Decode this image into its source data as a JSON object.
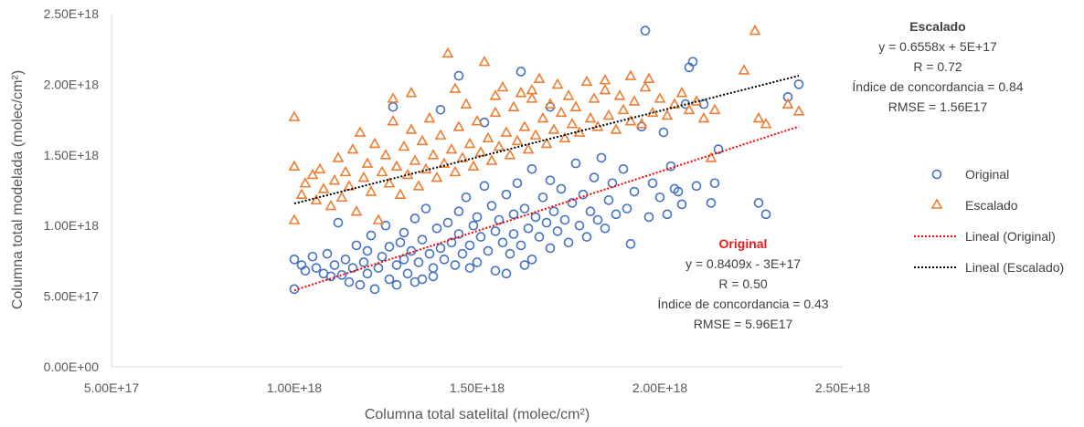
{
  "chart_data": {
    "type": "scatter",
    "xlabel": "Columna total satelital (molec/cm²)",
    "ylabel": "Columna total modelada (molec/cm²)",
    "xlim": [
      5e+17,
      2.5e+18
    ],
    "ylim": [
      0,
      2.5e+18
    ],
    "x_ticks": [
      "5.00E+17",
      "1.00E+18",
      "1.50E+18",
      "2.00E+18",
      "2.50E+18"
    ],
    "y_ticks": [
      "0.00E+00",
      "5.00E+17",
      "1.00E+18",
      "1.50E+18",
      "2.00E+18",
      "2.50E+18"
    ],
    "grid": false,
    "legend_position": "right",
    "series": [
      {
        "name": "Original",
        "marker": "circle",
        "color": "#4472c4",
        "points": [
          [
            1e+18,
            5.5e+17
          ],
          [
            1e+18,
            7.6e+17
          ],
          [
            1.02e+18,
            7.2e+17
          ],
          [
            1.03e+18,
            6.8e+17
          ],
          [
            1.05e+18,
            7.8e+17
          ],
          [
            1.06e+18,
            7e+17
          ],
          [
            1.08e+18,
            6.6e+17
          ],
          [
            1.09e+18,
            8e+17
          ],
          [
            1.1e+18,
            6.4e+17
          ],
          [
            1.11e+18,
            7.2e+17
          ],
          [
            1.12e+18,
            1.02e+18
          ],
          [
            1.13e+18,
            6.5e+17
          ],
          [
            1.14e+18,
            7.6e+17
          ],
          [
            1.15e+18,
            6e+17
          ],
          [
            1.16e+18,
            7e+17
          ],
          [
            1.17e+18,
            8.6e+17
          ],
          [
            1.18e+18,
            5.8e+17
          ],
          [
            1.19e+18,
            7.4e+17
          ],
          [
            1.2e+18,
            8.2e+17
          ],
          [
            1.2e+18,
            6.6e+17
          ],
          [
            1.21e+18,
            9.3e+17
          ],
          [
            1.22e+18,
            5.5e+17
          ],
          [
            1.23e+18,
            7e+17
          ],
          [
            1.24e+18,
            7.8e+17
          ],
          [
            1.25e+18,
            1e+18
          ],
          [
            1.26e+18,
            6.2e+17
          ],
          [
            1.26e+18,
            8.5e+17
          ],
          [
            1.27e+18,
            1.84e+18
          ],
          [
            1.28e+18,
            7.2e+17
          ],
          [
            1.29e+18,
            8.8e+17
          ],
          [
            1.3e+18,
            7.6e+17
          ],
          [
            1.3e+18,
            9.5e+17
          ],
          [
            1.31e+18,
            6.6e+17
          ],
          [
            1.32e+18,
            8.2e+17
          ],
          [
            1.33e+18,
            1.05e+18
          ],
          [
            1.34e+18,
            7.4e+17
          ],
          [
            1.35e+18,
            9e+17
          ],
          [
            1.35e+18,
            6.2e+17
          ],
          [
            1.36e+18,
            1.12e+18
          ],
          [
            1.37e+18,
            8e+17
          ],
          [
            1.38e+18,
            7e+17
          ],
          [
            1.39e+18,
            9.8e+17
          ],
          [
            1.4e+18,
            8.4e+17
          ],
          [
            1.4e+18,
            1.82e+18
          ],
          [
            1.41e+18,
            7.6e+17
          ],
          [
            1.42e+18,
            1.02e+18
          ],
          [
            1.43e+18,
            8.8e+17
          ],
          [
            1.44e+18,
            7.2e+17
          ],
          [
            1.45e+18,
            1.1e+18
          ],
          [
            1.45e+18,
            9.4e+17
          ],
          [
            1.46e+18,
            8e+17
          ],
          [
            1.47e+18,
            1.2e+18
          ],
          [
            1.48e+18,
            8.6e+17
          ],
          [
            1.49e+18,
            1e+18
          ],
          [
            1.5e+18,
            7.4e+17
          ],
          [
            1.5e+18,
            1.06e+18
          ],
          [
            1.51e+18,
            9.2e+17
          ],
          [
            1.52e+18,
            1.28e+18
          ],
          [
            1.53e+18,
            8.2e+17
          ],
          [
            1.54e+18,
            1.14e+18
          ],
          [
            1.55e+18,
            9.6e+17
          ],
          [
            1.55e+18,
            6.8e+17
          ],
          [
            1.56e+18,
            1.04e+18
          ],
          [
            1.57e+18,
            8.8e+17
          ],
          [
            1.58e+18,
            1.22e+18
          ],
          [
            1.59e+18,
            8e+17
          ],
          [
            1.6e+18,
            1.08e+18
          ],
          [
            1.6e+18,
            9.4e+17
          ],
          [
            1.61e+18,
            1.3e+18
          ],
          [
            1.62e+18,
            8.6e+17
          ],
          [
            1.63e+18,
            1.12e+18
          ],
          [
            1.64e+18,
            9.8e+17
          ],
          [
            1.65e+18,
            1.4e+18
          ],
          [
            1.65e+18,
            7.6e+17
          ],
          [
            1.66e+18,
            1.06e+18
          ],
          [
            1.67e+18,
            9.2e+17
          ],
          [
            1.68e+18,
            1.2e+18
          ],
          [
            1.69e+18,
            1.02e+18
          ],
          [
            1.7e+18,
            8.4e+17
          ],
          [
            1.7e+18,
            1.32e+18
          ],
          [
            1.71e+18,
            1.1e+18
          ],
          [
            1.72e+18,
            9.6e+17
          ],
          [
            1.73e+18,
            1.26e+18
          ],
          [
            1.74e+18,
            1.04e+18
          ],
          [
            1.75e+18,
            8.8e+17
          ],
          [
            1.76e+18,
            1.16e+18
          ],
          [
            1.77e+18,
            1.44e+18
          ],
          [
            1.78e+18,
            1e+18
          ],
          [
            1.79e+18,
            1.22e+18
          ],
          [
            1.8e+18,
            9.2e+17
          ],
          [
            1.81e+18,
            1.1e+18
          ],
          [
            1.82e+18,
            1.34e+18
          ],
          [
            1.83e+18,
            1.04e+18
          ],
          [
            1.84e+18,
            1.48e+18
          ],
          [
            1.85e+18,
            9.8e+17
          ],
          [
            1.86e+18,
            1.18e+18
          ],
          [
            1.87e+18,
            1.3e+18
          ],
          [
            1.88e+18,
            1.08e+18
          ],
          [
            1.9e+18,
            1.4e+18
          ],
          [
            1.91e+18,
            1.12e+18
          ],
          [
            1.92e+18,
            8.7e+17
          ],
          [
            1.93e+18,
            1.24e+18
          ],
          [
            1.95e+18,
            1.7e+18
          ],
          [
            1.96e+18,
            2.38e+18
          ],
          [
            1.97e+18,
            1.06e+18
          ],
          [
            1.98e+18,
            1.3e+18
          ],
          [
            2e+18,
            1.2e+18
          ],
          [
            2.01e+18,
            1.66e+18
          ],
          [
            2.02e+18,
            1.08e+18
          ],
          [
            2.03e+18,
            1.42e+18
          ],
          [
            2.04e+18,
            1.26e+18
          ],
          [
            2.05e+18,
            1.24e+18
          ],
          [
            2.06e+18,
            1.15e+18
          ],
          [
            2.07e+18,
            1.86e+18
          ],
          [
            2.08e+18,
            2.12e+18
          ],
          [
            2.09e+18,
            2.16e+18
          ],
          [
            2.1e+18,
            1.28e+18
          ],
          [
            2.12e+18,
            1.86e+18
          ],
          [
            2.14e+18,
            1.16e+18
          ],
          [
            2.15e+18,
            1.3e+18
          ],
          [
            2.16e+18,
            1.54e+18
          ],
          [
            2.27e+18,
            1.16e+18
          ],
          [
            2.29e+18,
            1.08e+18
          ],
          [
            2.35e+18,
            1.91e+18
          ],
          [
            2.38e+18,
            2e+18
          ],
          [
            1.45e+18,
            2.06e+18
          ],
          [
            1.52e+18,
            1.73e+18
          ],
          [
            1.62e+18,
            2.09e+18
          ],
          [
            1.7e+18,
            1.84e+18
          ],
          [
            1.58e+18,
            6.6e+17
          ],
          [
            1.33e+18,
            6e+17
          ],
          [
            1.38e+18,
            6.4e+17
          ],
          [
            1.48e+18,
            7e+17
          ],
          [
            1.63e+18,
            7.2e+17
          ],
          [
            1.28e+18,
            5.8e+17
          ]
        ]
      },
      {
        "name": "Escalado",
        "marker": "triangle",
        "color": "#ed7d31",
        "points": [
          [
            1e+18,
            1.04e+18
          ],
          [
            1e+18,
            1.42e+18
          ],
          [
            1e+18,
            1.77e+18
          ],
          [
            1.02e+18,
            1.22e+18
          ],
          [
            1.03e+18,
            1.3e+18
          ],
          [
            1.05e+18,
            1.36e+18
          ],
          [
            1.06e+18,
            1.18e+18
          ],
          [
            1.07e+18,
            1.4e+18
          ],
          [
            1.08e+18,
            1.26e+18
          ],
          [
            1.1e+18,
            1.14e+18
          ],
          [
            1.11e+18,
            1.32e+18
          ],
          [
            1.12e+18,
            1.48e+18
          ],
          [
            1.13e+18,
            1.2e+18
          ],
          [
            1.14e+18,
            1.38e+18
          ],
          [
            1.15e+18,
            1.28e+18
          ],
          [
            1.16e+18,
            1.54e+18
          ],
          [
            1.17e+18,
            1.1e+18
          ],
          [
            1.18e+18,
            1.66e+18
          ],
          [
            1.19e+18,
            1.34e+18
          ],
          [
            1.2e+18,
            1.44e+18
          ],
          [
            1.21e+18,
            1.24e+18
          ],
          [
            1.22e+18,
            1.58e+18
          ],
          [
            1.23e+18,
            1.04e+18
          ],
          [
            1.24e+18,
            1.38e+18
          ],
          [
            1.25e+18,
            1.5e+18
          ],
          [
            1.26e+18,
            1.3e+18
          ],
          [
            1.27e+18,
            1.74e+18
          ],
          [
            1.28e+18,
            1.42e+18
          ],
          [
            1.29e+18,
            1.22e+18
          ],
          [
            1.3e+18,
            1.56e+18
          ],
          [
            1.31e+18,
            1.36e+18
          ],
          [
            1.32e+18,
            1.68e+18
          ],
          [
            1.33e+18,
            1.46e+18
          ],
          [
            1.34e+18,
            1.28e+18
          ],
          [
            1.35e+18,
            1.6e+18
          ],
          [
            1.36e+18,
            1.4e+18
          ],
          [
            1.37e+18,
            1.76e+18
          ],
          [
            1.38e+18,
            1.5e+18
          ],
          [
            1.39e+18,
            1.34e+18
          ],
          [
            1.4e+18,
            1.64e+18
          ],
          [
            1.41e+18,
            1.44e+18
          ],
          [
            1.42e+18,
            2.22e+18
          ],
          [
            1.43e+18,
            1.54e+18
          ],
          [
            1.44e+18,
            1.38e+18
          ],
          [
            1.45e+18,
            1.7e+18
          ],
          [
            1.46e+18,
            1.48e+18
          ],
          [
            1.47e+18,
            1.86e+18
          ],
          [
            1.48e+18,
            1.58e+18
          ],
          [
            1.49e+18,
            1.42e+18
          ],
          [
            1.5e+18,
            1.74e+18
          ],
          [
            1.51e+18,
            1.52e+18
          ],
          [
            1.52e+18,
            2.16e+18
          ],
          [
            1.53e+18,
            1.62e+18
          ],
          [
            1.54e+18,
            1.46e+18
          ],
          [
            1.55e+18,
            1.8e+18
          ],
          [
            1.56e+18,
            1.56e+18
          ],
          [
            1.57e+18,
            1.98e+18
          ],
          [
            1.58e+18,
            1.66e+18
          ],
          [
            1.59e+18,
            1.5e+18
          ],
          [
            1.6e+18,
            1.84e+18
          ],
          [
            1.61e+18,
            1.6e+18
          ],
          [
            1.62e+18,
            1.94e+18
          ],
          [
            1.63e+18,
            1.7e+18
          ],
          [
            1.64e+18,
            1.54e+18
          ],
          [
            1.65e+18,
            1.9e+18
          ],
          [
            1.66e+18,
            1.64e+18
          ],
          [
            1.67e+18,
            2.04e+18
          ],
          [
            1.68e+18,
            1.76e+18
          ],
          [
            1.69e+18,
            1.58e+18
          ],
          [
            1.7e+18,
            1.86e+18
          ],
          [
            1.71e+18,
            1.68e+18
          ],
          [
            1.72e+18,
            2e+18
          ],
          [
            1.73e+18,
            1.8e+18
          ],
          [
            1.74e+18,
            1.62e+18
          ],
          [
            1.75e+18,
            1.92e+18
          ],
          [
            1.76e+18,
            1.72e+18
          ],
          [
            1.77e+18,
            1.84e+18
          ],
          [
            1.78e+18,
            1.66e+18
          ],
          [
            1.8e+18,
            2.02e+18
          ],
          [
            1.81e+18,
            1.76e+18
          ],
          [
            1.82e+18,
            1.9e+18
          ],
          [
            1.83e+18,
            1.7e+18
          ],
          [
            1.85e+18,
            1.96e+18
          ],
          [
            1.86e+18,
            1.78e+18
          ],
          [
            1.88e+18,
            1.68e+18
          ],
          [
            1.89e+18,
            1.92e+18
          ],
          [
            1.9e+18,
            1.82e+18
          ],
          [
            1.92e+18,
            1.74e+18
          ],
          [
            1.93e+18,
            1.88e+18
          ],
          [
            1.95e+18,
            1.72e+18
          ],
          [
            1.96e+18,
            1.98e+18
          ],
          [
            1.98e+18,
            1.8e+18
          ],
          [
            2e+18,
            1.9e+18
          ],
          [
            2.02e+18,
            1.78e+18
          ],
          [
            2.04e+18,
            1.86e+18
          ],
          [
            2.06e+18,
            1.94e+18
          ],
          [
            2.08e+18,
            1.82e+18
          ],
          [
            2.1e+18,
            1.88e+18
          ],
          [
            2.12e+18,
            1.76e+18
          ],
          [
            2.14e+18,
            1.48e+18
          ],
          [
            2.15e+18,
            1.82e+18
          ],
          [
            2.23e+18,
            2.1e+18
          ],
          [
            2.26e+18,
            2.38e+18
          ],
          [
            2.27e+18,
            1.76e+18
          ],
          [
            2.29e+18,
            1.72e+18
          ],
          [
            2.35e+18,
            1.86e+18
          ],
          [
            2.38e+18,
            1.81e+18
          ],
          [
            1.85e+18,
            2.03e+18
          ],
          [
            1.92e+18,
            2.06e+18
          ],
          [
            1.97e+18,
            2.04e+18
          ],
          [
            1.32e+18,
            1.94e+18
          ],
          [
            1.55e+18,
            1.92e+18
          ],
          [
            1.27e+18,
            1.9e+18
          ],
          [
            1.44e+18,
            1.97e+18
          ],
          [
            1.65e+18,
            1.96e+18
          ]
        ]
      }
    ],
    "trendlines": [
      {
        "name": "Lineal (Original)",
        "color": "#ff0000",
        "slope": 0.8409,
        "intercept": -3e+17,
        "x_range": [
          1e+18,
          2.38e+18
        ]
      },
      {
        "name": "Lineal (Escalado)",
        "color": "#000000",
        "slope": 0.6558,
        "intercept": 5e+17,
        "x_range": [
          1e+18,
          2.38e+18
        ]
      }
    ],
    "annotations": {
      "escalado": {
        "title": "Escalado",
        "lines": [
          "y = 0.6558x + 5E+17",
          "R = 0.72",
          "Índice de concordancia = 0.84",
          "RMSE = 1.56E17"
        ]
      },
      "original": {
        "title": "Original",
        "lines": [
          "y = 0.8409x - 3E+17",
          "R = 0.50",
          "Índice de concordancia = 0.43",
          "RMSE = 5.96E17"
        ]
      }
    },
    "legend": [
      "Original",
      "Escalado",
      "Lineal (Original)",
      "Lineal (Escalado)"
    ]
  }
}
